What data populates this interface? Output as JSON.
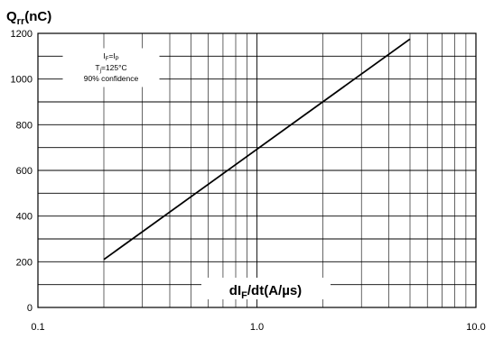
{
  "chart_data": {
    "type": "line",
    "ylabel_main": "Q",
    "ylabel_sub": "rr",
    "ylabel_unit": "(nC)",
    "xlabel_main": "dI",
    "xlabel_sub": "F",
    "xlabel_unit": "/dt(A/µs)",
    "x_scale": "log",
    "xlim": [
      0.1,
      10.0
    ],
    "ylim": [
      0,
      1200
    ],
    "x_ticks": [
      0.1,
      1.0,
      10.0
    ],
    "x_tick_labels": [
      "0.1",
      "1.0",
      "10.0"
    ],
    "y_ticks": [
      0,
      200,
      400,
      600,
      800,
      1000,
      1200
    ],
    "y_tick_labels": [
      "0",
      "200",
      "400",
      "600",
      "800",
      "1000",
      "1200"
    ],
    "grid": true,
    "series": [
      {
        "x": [
          0.2,
          5.0
        ],
        "y": [
          210,
          1175
        ],
        "color": "#000000"
      }
    ],
    "annotation": {
      "line1_main": "I",
      "line1_sub1": "F",
      "line1_mid": "=I",
      "line1_sub2": "P",
      "line2_main": "T",
      "line2_sub": "j",
      "line2_rest": "=125°C",
      "line3": "90% confidence",
      "position": "top-left"
    }
  }
}
